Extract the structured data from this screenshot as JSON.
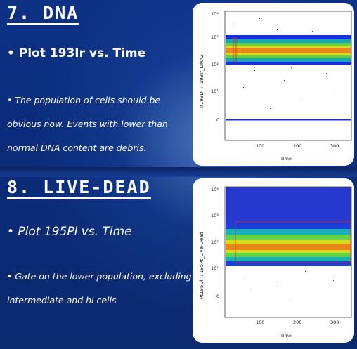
{
  "slides": [
    {
      "heading": "7. DNA",
      "subheading": "• Plot 193Ir vs. Time",
      "body_lines": [
        "• The population of cells should be",
        "obvious now. Events with lower than",
        "normal DNA content are debris."
      ],
      "plot": {
        "y_axis_label": "Ir193Di :: 193Ir_DNA2",
        "x_axis_label": "Time",
        "y_ticks": [
          "10⁴",
          "10³",
          "10²",
          "10¹",
          "0"
        ],
        "x_ticks": [
          "100",
          "200",
          "300"
        ]
      }
    },
    {
      "heading": "8. LIVE-DEAD",
      "subheading": "• Plot 195Pl vs. Time",
      "body_lines": [
        "• Gate on the lower population, excluding",
        "intermediate and hi cells"
      ],
      "plot": {
        "y_axis_label": "Pt195Di :: 195Pt_Live-Dead",
        "x_axis_label": "Time",
        "y_ticks": [
          "10⁴",
          "10³",
          "10²",
          "10¹",
          "0"
        ],
        "x_ticks": [
          "100",
          "200",
          "300"
        ]
      }
    }
  ],
  "colors": {
    "background": "#0b2a6e",
    "text": "#ffffff",
    "gate": "#e02020"
  }
}
